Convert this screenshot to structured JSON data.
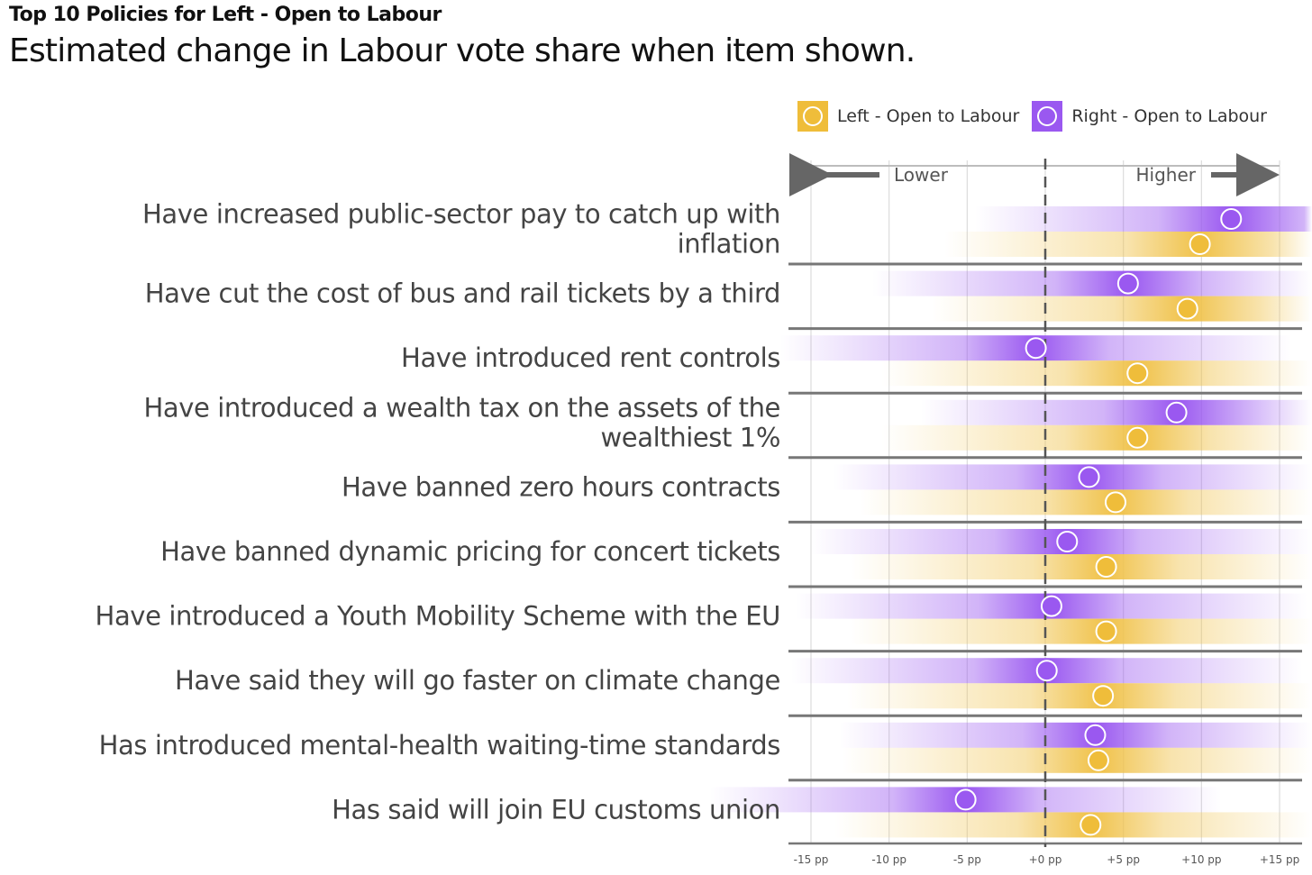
{
  "title": "Top 10 Policies for Left - Open to Labour",
  "subtitle": "Estimated change in Labour vote share when item shown.",
  "legend": [
    {
      "label": "Left - Open to Labour",
      "color": "#efbd3a"
    },
    {
      "label": "Right - Open to Labour",
      "color": "#9a58f0"
    }
  ],
  "colors": {
    "left": "#efbd3a",
    "right": "#9a58f0",
    "left_band": "#f0c24a",
    "right_band": "#9a58f0"
  },
  "chart_data": {
    "type": "scatter",
    "x_axis_unit": "pp",
    "xlim": [
      -15,
      15
    ],
    "x_ticks": [
      -15,
      -10,
      -5,
      0,
      5,
      10,
      15
    ],
    "x_tick_labels": [
      "-15 pp",
      "-10 pp",
      "-5 pp",
      "+0 pp",
      "+5 pp",
      "+10 pp",
      "+15 pp"
    ],
    "direction_labels": {
      "lower": "Lower",
      "higher": "Higher"
    },
    "grid": true,
    "legend_position": "top-right",
    "categories": [
      "Have increased public-sector pay to catch up with\ninflation",
      "Have cut the cost of bus and rail tickets by a third",
      "Have introduced rent controls",
      "Have introduced a wealth tax on the assets of the\nwealthiest 1%",
      "Have banned zero hours contracts",
      "Have banned dynamic pricing for concert tickets",
      "Have introduced a Youth Mobility Scheme with the EU",
      "Have said they will go faster on climate change",
      "Has introduced mental-health waiting-time standards",
      "Has said will join EU customs union"
    ],
    "series": [
      {
        "name": "Right - Open to Labour",
        "values": [
          11.9,
          5.3,
          -0.6,
          8.4,
          2.8,
          1.4,
          0.4,
          0.1,
          3.2,
          -5.1
        ]
      },
      {
        "name": "Left - Open to Labour",
        "values": [
          9.9,
          9.1,
          5.9,
          5.9,
          4.5,
          3.9,
          3.9,
          3.7,
          3.4,
          2.9
        ]
      }
    ]
  }
}
